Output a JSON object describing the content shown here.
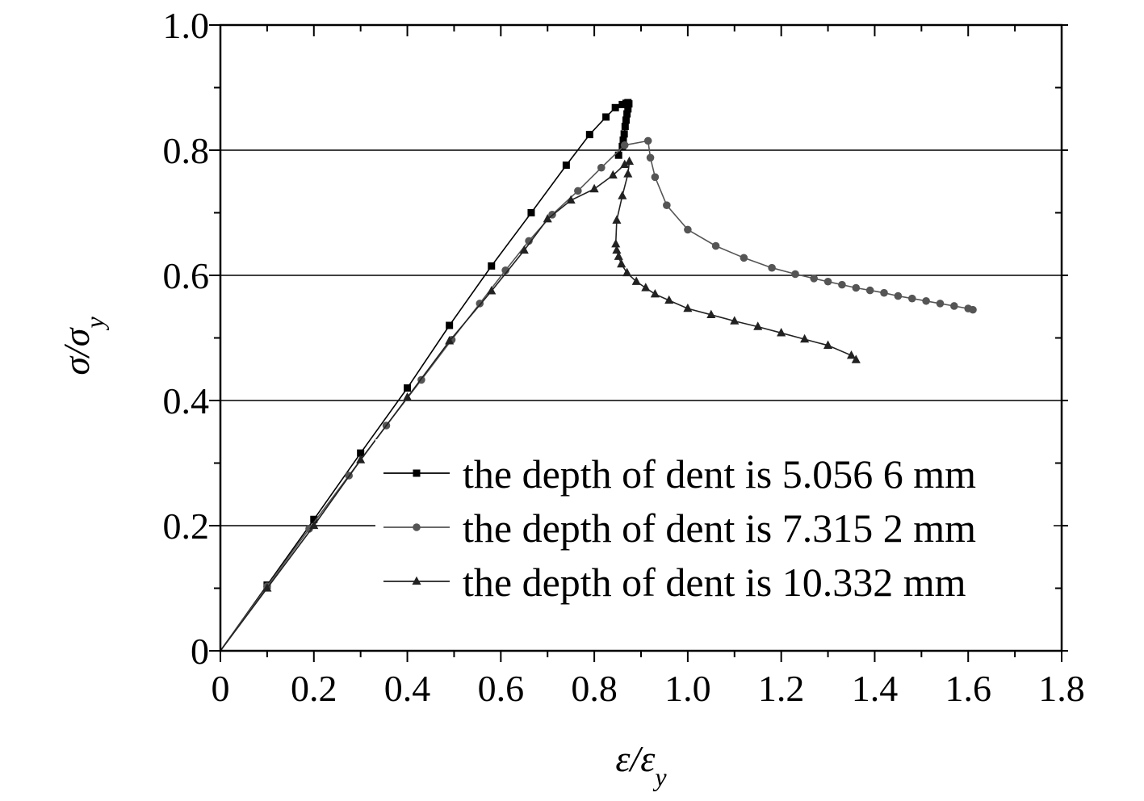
{
  "chart_data": {
    "type": "line",
    "title": "",
    "xlabel": {
      "main": "ε/ε",
      "sub": "y"
    },
    "ylabel": {
      "main": "σ/σ",
      "sub": "y"
    },
    "xlim": [
      0,
      1.8
    ],
    "ylim": [
      0,
      1.0
    ],
    "x_ticks": [
      0,
      0.2,
      0.4,
      0.6,
      0.8,
      1.0,
      1.2,
      1.4,
      1.6,
      1.8
    ],
    "x_tick_labels": [
      "0",
      "0.2",
      "0.4",
      "0.6",
      "0.8",
      "1.0",
      "1.2",
      "1.4",
      "1.6",
      "1.8"
    ],
    "y_ticks": [
      0,
      0.2,
      0.4,
      0.6,
      0.8,
      1.0
    ],
    "y_tick_labels": [
      "0",
      "0.2",
      "0.4",
      "0.6",
      "0.8",
      "1.0"
    ],
    "grid": "horizontal",
    "legend_position": "bottom-right",
    "series": [
      {
        "name": "the depth of dent is 5.056 6 mm",
        "marker": "square",
        "color": "#000000",
        "points": [
          [
            0,
            0
          ],
          [
            0.1,
            0.105
          ],
          [
            0.2,
            0.21
          ],
          [
            0.3,
            0.316
          ],
          [
            0.4,
            0.42
          ],
          [
            0.49,
            0.52
          ],
          [
            0.58,
            0.615
          ],
          [
            0.665,
            0.7
          ],
          [
            0.74,
            0.776
          ],
          [
            0.79,
            0.825
          ],
          [
            0.825,
            0.853
          ],
          [
            0.845,
            0.868
          ],
          [
            0.86,
            0.873
          ],
          [
            0.868,
            0.875
          ],
          [
            0.872,
            0.876
          ],
          [
            0.874,
            0.874
          ],
          [
            0.872,
            0.866
          ],
          [
            0.87,
            0.858
          ],
          [
            0.868,
            0.848
          ],
          [
            0.866,
            0.838
          ],
          [
            0.864,
            0.826
          ],
          [
            0.862,
            0.816
          ],
          [
            0.86,
            0.806
          ],
          [
            0.852,
            0.792
          ]
        ]
      },
      {
        "name": "the depth of dent is 7.315 2 mm",
        "marker": "circle",
        "color": "#555555",
        "points": [
          [
            0,
            0
          ],
          [
            0.1,
            0.103
          ],
          [
            0.19,
            0.195
          ],
          [
            0.275,
            0.28
          ],
          [
            0.355,
            0.36
          ],
          [
            0.43,
            0.433
          ],
          [
            0.495,
            0.497
          ],
          [
            0.555,
            0.555
          ],
          [
            0.61,
            0.608
          ],
          [
            0.66,
            0.655
          ],
          [
            0.71,
            0.697
          ],
          [
            0.765,
            0.735
          ],
          [
            0.815,
            0.772
          ],
          [
            0.865,
            0.808
          ],
          [
            0.915,
            0.815
          ],
          [
            0.92,
            0.788
          ],
          [
            0.93,
            0.757
          ],
          [
            0.955,
            0.712
          ],
          [
            1.0,
            0.673
          ],
          [
            1.06,
            0.647
          ],
          [
            1.12,
            0.628
          ],
          [
            1.18,
            0.612
          ],
          [
            1.23,
            0.602
          ],
          [
            1.27,
            0.595
          ],
          [
            1.3,
            0.59
          ],
          [
            1.33,
            0.585
          ],
          [
            1.36,
            0.58
          ],
          [
            1.39,
            0.576
          ],
          [
            1.42,
            0.572
          ],
          [
            1.45,
            0.567
          ],
          [
            1.48,
            0.563
          ],
          [
            1.51,
            0.559
          ],
          [
            1.54,
            0.555
          ],
          [
            1.57,
            0.551
          ],
          [
            1.6,
            0.547
          ],
          [
            1.61,
            0.545
          ]
        ]
      },
      {
        "name": "the depth of dent is 10.332 mm",
        "marker": "triangle",
        "color": "#222222",
        "points": [
          [
            0,
            0
          ],
          [
            0.1,
            0.1
          ],
          [
            0.2,
            0.2
          ],
          [
            0.3,
            0.305
          ],
          [
            0.4,
            0.405
          ],
          [
            0.49,
            0.495
          ],
          [
            0.58,
            0.575
          ],
          [
            0.65,
            0.64
          ],
          [
            0.7,
            0.69
          ],
          [
            0.75,
            0.72
          ],
          [
            0.8,
            0.738
          ],
          [
            0.84,
            0.76
          ],
          [
            0.865,
            0.777
          ],
          [
            0.875,
            0.782
          ],
          [
            0.872,
            0.762
          ],
          [
            0.86,
            0.727
          ],
          [
            0.848,
            0.688
          ],
          [
            0.846,
            0.65
          ],
          [
            0.848,
            0.64
          ],
          [
            0.852,
            0.63
          ],
          [
            0.858,
            0.618
          ],
          [
            0.87,
            0.604
          ],
          [
            0.89,
            0.59
          ],
          [
            0.91,
            0.58
          ],
          [
            0.93,
            0.57
          ],
          [
            0.96,
            0.56
          ],
          [
            1.0,
            0.547
          ],
          [
            1.05,
            0.537
          ],
          [
            1.1,
            0.527
          ],
          [
            1.15,
            0.518
          ],
          [
            1.2,
            0.508
          ],
          [
            1.25,
            0.498
          ],
          [
            1.3,
            0.488
          ],
          [
            1.35,
            0.472
          ],
          [
            1.36,
            0.465
          ]
        ]
      }
    ]
  }
}
